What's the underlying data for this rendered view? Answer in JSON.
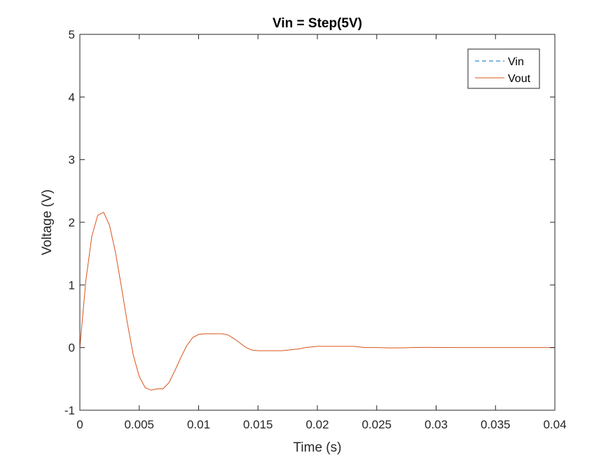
{
  "chart_data": {
    "type": "line",
    "title": "Vin = Step(5V)",
    "xlabel": "Time (s)",
    "ylabel": "Voltage (V)",
    "xlim": [
      0,
      0.04
    ],
    "ylim": [
      -1,
      5
    ],
    "xticks": [
      0,
      0.005,
      0.01,
      0.015,
      0.02,
      0.025,
      0.03,
      0.035,
      0.04
    ],
    "xtick_labels": [
      "0",
      "0.005",
      "0.01",
      "0.015",
      "0.02",
      "0.025",
      "0.03",
      "0.035",
      "0.04"
    ],
    "yticks": [
      -1,
      0,
      1,
      2,
      3,
      4,
      5
    ],
    "ytick_labels": [
      "-1",
      "0",
      "1",
      "2",
      "3",
      "4",
      "5"
    ],
    "grid": false,
    "legend_position": "top-right",
    "series": [
      {
        "name": "Vin",
        "color": "#0072BD",
        "style": "dashed",
        "x": [
          0,
          0.04
        ],
        "y": [
          5,
          5
        ]
      },
      {
        "name": "Vout",
        "color": "#D95319",
        "style": "solid",
        "x": [
          0,
          0.0005,
          0.001,
          0.0015,
          0.002,
          0.0025,
          0.003,
          0.0035,
          0.004,
          0.0045,
          0.005,
          0.0055,
          0.006,
          0.0065,
          0.007,
          0.0075,
          0.008,
          0.0085,
          0.009,
          0.0095,
          0.01,
          0.0105,
          0.011,
          0.0115,
          0.012,
          0.0125,
          0.013,
          0.0135,
          0.014,
          0.0145,
          0.015,
          0.0155,
          0.016,
          0.0165,
          0.017,
          0.0175,
          0.018,
          0.0185,
          0.019,
          0.0195,
          0.02,
          0.0205,
          0.021,
          0.0215,
          0.022,
          0.0225,
          0.023,
          0.0235,
          0.024,
          0.0245,
          0.025,
          0.026,
          0.027,
          0.028,
          0.029,
          0.03,
          0.032,
          0.034,
          0.036,
          0.038,
          0.04
        ],
        "y": [
          0,
          1.06,
          1.77,
          2.11,
          2.16,
          1.95,
          1.52,
          0.97,
          0.39,
          -0.12,
          -0.46,
          -0.64,
          -0.68,
          -0.66,
          -0.66,
          -0.56,
          -0.37,
          -0.16,
          0.03,
          0.16,
          0.21,
          0.22,
          0.22,
          0.22,
          0.22,
          0.2,
          0.14,
          0.07,
          0.0,
          -0.04,
          -0.05,
          -0.05,
          -0.05,
          -0.05,
          -0.05,
          -0.04,
          -0.03,
          -0.02,
          0.0,
          0.01,
          0.02,
          0.02,
          0.02,
          0.02,
          0.02,
          0.02,
          0.02,
          0.01,
          0.0,
          0.0,
          0.0,
          -0.005,
          -0.005,
          0.0,
          0.003,
          0.002,
          0.0,
          0.0,
          0.0,
          0.0,
          0.0
        ]
      }
    ]
  }
}
